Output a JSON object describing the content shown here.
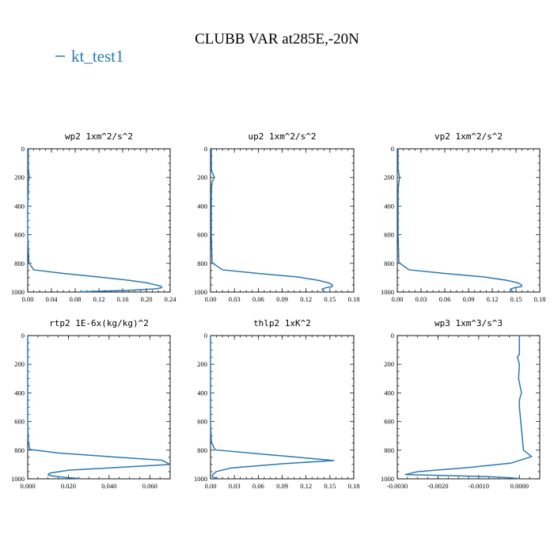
{
  "figure": {
    "title": "CLUBB VAR at285E,-20N",
    "legend_label": "kt_test1",
    "series_color": "#2a78b4"
  },
  "chart_data": [
    {
      "type": "line",
      "title": "wp2  1xm^2/s^2",
      "xlim": [
        0.0,
        0.24
      ],
      "ylim": [
        0,
        1000
      ],
      "y_inverted": true,
      "xticks": [
        "0.00",
        "0.04",
        "0.08",
        "0.12",
        "0.16",
        "0.20",
        "0.24"
      ],
      "yticks": [
        "0",
        "200",
        "400",
        "600",
        "800",
        "1000"
      ],
      "series": [
        {
          "x": [
            0.001,
            0.001,
            0.003,
            0.001,
            0.001,
            0.0,
            0.0,
            0.0,
            0.002,
            0.01,
            0.06,
            0.12,
            0.17,
            0.2,
            0.215,
            0.225,
            0.226,
            0.215,
            0.17,
            0.09
          ],
          "y": [
            0,
            150,
            200,
            230,
            300,
            400,
            500,
            600,
            795,
            845,
            870,
            895,
            918,
            935,
            950,
            960,
            970,
            978,
            988,
            998
          ]
        }
      ]
    },
    {
      "type": "line",
      "title": "up2  1xm^2/s^2",
      "xlim": [
        0.0,
        0.18
      ],
      "ylim": [
        0,
        1000
      ],
      "y_inverted": true,
      "xticks": [
        "0.00",
        "0.03",
        "0.06",
        "0.09",
        "0.12",
        "0.15",
        "0.18"
      ],
      "yticks": [
        "0",
        "200",
        "400",
        "600",
        "800",
        "1000"
      ],
      "series": [
        {
          "x": [
            0.001,
            0.001,
            0.005,
            0.002,
            0.001,
            0.001,
            0.001,
            0.001,
            0.002,
            0.015,
            0.06,
            0.11,
            0.135,
            0.148,
            0.153,
            0.153,
            0.145,
            0.14,
            0.143
          ],
          "y": [
            0,
            150,
            200,
            230,
            300,
            400,
            500,
            600,
            795,
            845,
            870,
            895,
            918,
            935,
            950,
            962,
            970,
            980,
            998
          ]
        }
      ]
    },
    {
      "type": "line",
      "title": "vp2  1xm^2/s^2",
      "xlim": [
        0.0,
        0.18
      ],
      "ylim": [
        0,
        1000
      ],
      "y_inverted": true,
      "xticks": [
        "0.00",
        "0.03",
        "0.06",
        "0.09",
        "0.12",
        "0.15",
        "0.18"
      ],
      "yticks": [
        "0",
        "200",
        "400",
        "600",
        "800",
        "1000"
      ],
      "series": [
        {
          "x": [
            0.001,
            0.001,
            0.003,
            0.002,
            0.001,
            0.001,
            0.001,
            0.001,
            0.002,
            0.015,
            0.06,
            0.11,
            0.138,
            0.152,
            0.157,
            0.157,
            0.148,
            0.143,
            0.146
          ],
          "y": [
            0,
            150,
            200,
            230,
            300,
            400,
            500,
            600,
            795,
            845,
            870,
            895,
            918,
            935,
            950,
            962,
            970,
            980,
            998
          ]
        }
      ]
    },
    {
      "type": "line",
      "title": "rtp2  1E-6x(kg/kg)^2",
      "xlim": [
        0.0,
        0.07
      ],
      "ylim": [
        0,
        1000
      ],
      "y_inverted": true,
      "xticks": [
        "0.000",
        "0.020",
        "0.040",
        "0.060"
      ],
      "xtick_values": [
        0.0,
        0.02,
        0.04,
        0.06
      ],
      "yticks": [
        "0",
        "200",
        "400",
        "600",
        "800",
        "1000"
      ],
      "series": [
        {
          "x": [
            0.0,
            0.0,
            0.0,
            0.0,
            0.0003,
            0.001,
            0.015,
            0.04,
            0.066,
            0.07,
            0.045,
            0.02,
            0.011,
            0.01,
            0.012,
            0.018,
            0.026
          ],
          "y": [
            0,
            200,
            400,
            600,
            740,
            795,
            820,
            845,
            870,
            900,
            920,
            940,
            960,
            972,
            980,
            990,
            998
          ]
        }
      ]
    },
    {
      "type": "line",
      "title": "thlp2  1xK^2",
      "xlim": [
        0.0,
        0.18
      ],
      "ylim": [
        0,
        1000
      ],
      "y_inverted": true,
      "xticks": [
        "0.00",
        "0.03",
        "0.06",
        "0.09",
        "0.12",
        "0.15",
        "0.18"
      ],
      "yticks": [
        "0",
        "200",
        "400",
        "600",
        "800",
        "1000"
      ],
      "series": [
        {
          "x": [
            0.0,
            0.0,
            0.0,
            0.0,
            0.001,
            0.004,
            0.006,
            0.07,
            0.155,
            0.09,
            0.025,
            0.007,
            0.003,
            0.002,
            0.004,
            0.01
          ],
          "y": [
            0,
            200,
            400,
            600,
            740,
            780,
            798,
            830,
            872,
            895,
            925,
            950,
            970,
            982,
            990,
            998
          ]
        }
      ]
    },
    {
      "type": "line",
      "title": "wp3  1xm^3/s^3",
      "xlim": [
        -0.003,
        0.0005
      ],
      "ylim": [
        0,
        1000
      ],
      "y_inverted": true,
      "xticks": [
        "-0.0030",
        "-0.0020",
        "-0.0010",
        "0.0000"
      ],
      "xtick_values": [
        -0.003,
        -0.002,
        -0.001,
        0.0
      ],
      "yticks": [
        "0",
        "200",
        "400",
        "600",
        "800",
        "1000"
      ],
      "series": [
        {
          "x": [
            0.0,
            0.0,
            -5e-05,
            0.0,
            -2e-05,
            5e-05,
            0.0,
            0.0,
            0.0001,
            0.0003,
            -0.0002,
            -0.0012,
            -0.0025,
            -0.0028,
            -0.0018,
            -0.0008,
            -0.0003,
            0.0
          ],
          "y": [
            0,
            130,
            150,
            200,
            300,
            400,
            450,
            500,
            800,
            845,
            890,
            920,
            950,
            970,
            977,
            985,
            992,
            998
          ]
        }
      ]
    }
  ]
}
